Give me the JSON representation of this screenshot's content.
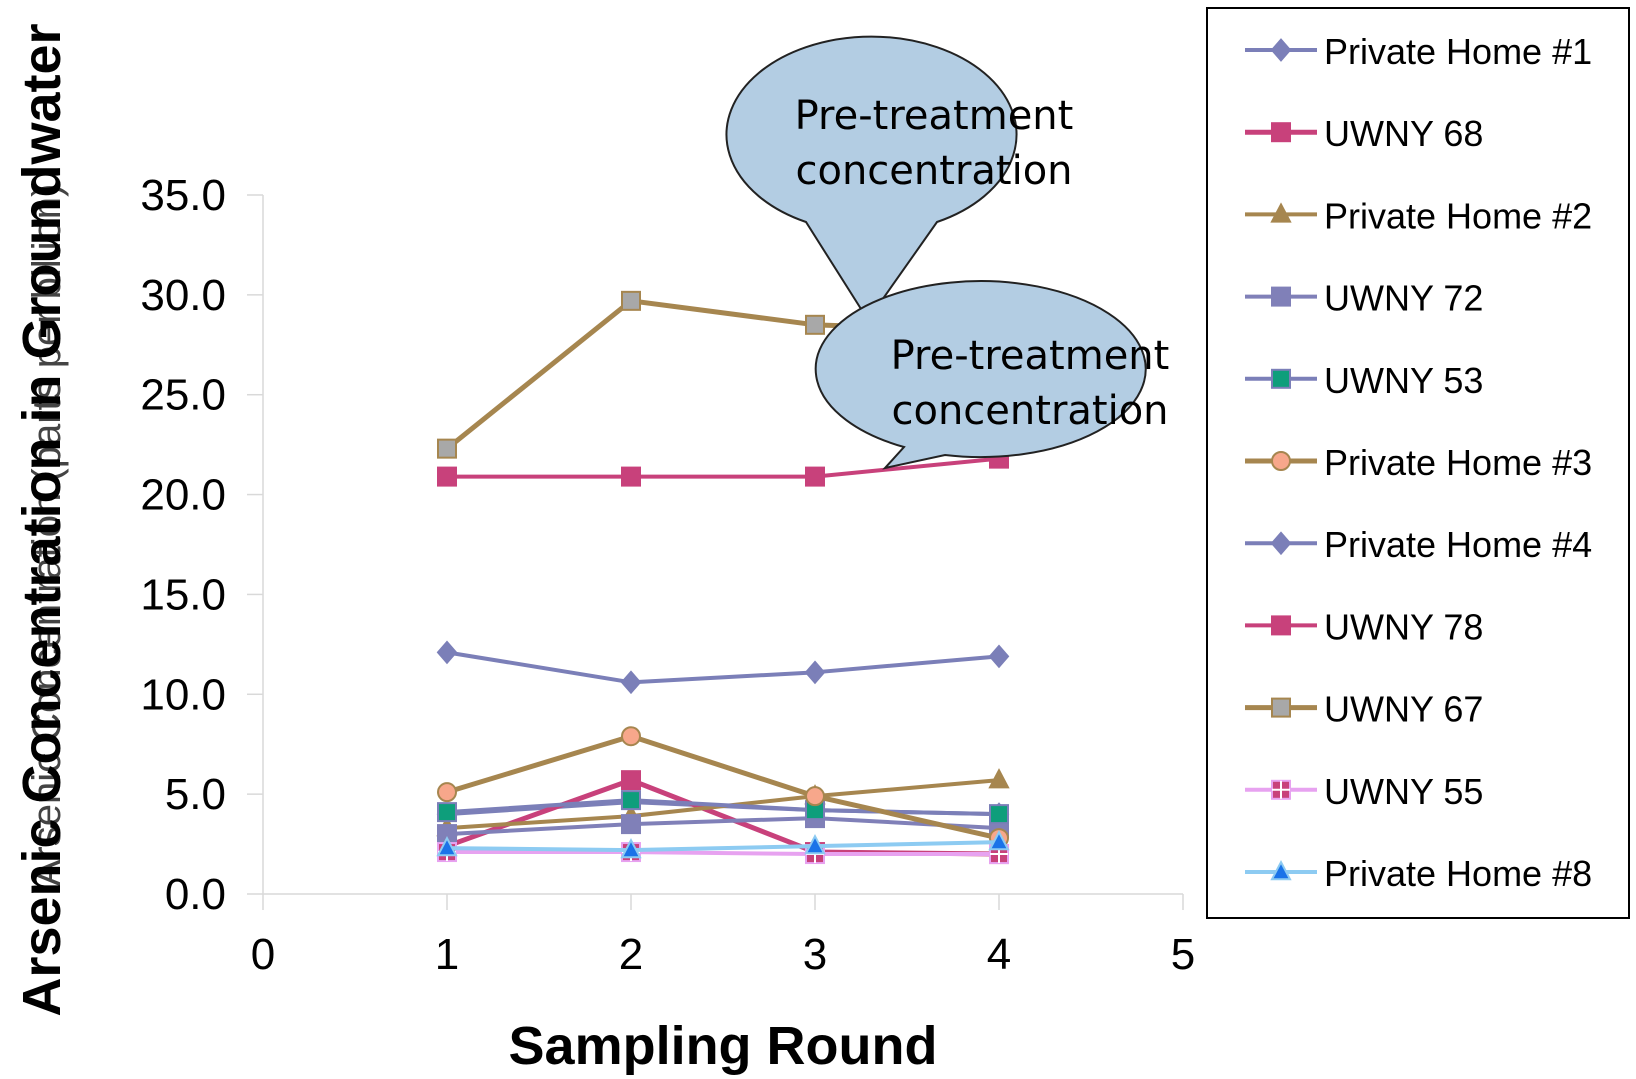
{
  "chart_data": {
    "type": "line",
    "xlabel": "Sampling Round",
    "ylabel_overlay": "Arsenic Concentration in Groundwater",
    "ylabel_underlay": "Arsenic Concentration (parts per billion)",
    "xlim": [
      0,
      5
    ],
    "ylim": [
      0,
      35
    ],
    "x_ticks": [
      "0",
      "1",
      "2",
      "3",
      "4",
      "5"
    ],
    "y_ticks": [
      "0.0",
      "5.0",
      "10.0",
      "15.0",
      "20.0",
      "25.0",
      "30.0",
      "35.0"
    ],
    "grid": false,
    "legend_position": "right",
    "x": [
      1,
      2,
      3,
      4
    ],
    "series": [
      {
        "name": "Private Home #1",
        "values": [
          4.0,
          4.6,
          4.2,
          4.0
        ],
        "color": "#7b7fb8",
        "marker": "diamond",
        "marker_fill": "#7b7fb8",
        "width": 4
      },
      {
        "name": "UWNY 68",
        "values": [
          2.4,
          5.7,
          2.1,
          2.0
        ],
        "color": "#c8417b",
        "marker": "square",
        "marker_fill": "#c8417b",
        "width": 5
      },
      {
        "name": "Private Home #2",
        "values": [
          3.3,
          3.9,
          4.9,
          5.7
        ],
        "color": "#a6864f",
        "marker": "triangle",
        "marker_fill": "#a6864f",
        "width": 4
      },
      {
        "name": "UWNY 72",
        "values": [
          3.0,
          3.5,
          3.8,
          3.3
        ],
        "color": "#8080b8",
        "marker": "square",
        "marker_fill": "#8080b8",
        "width": 4
      },
      {
        "name": "UWNY 53",
        "values": [
          4.1,
          4.7,
          4.2,
          4.0
        ],
        "color": "#7b7fb8",
        "marker": "square",
        "marker_fill": "#0e9e7b",
        "width": 4
      },
      {
        "name": "Private Home #3",
        "values": [
          5.1,
          7.9,
          4.9,
          2.8
        ],
        "color": "#a6864f",
        "marker": "circle",
        "marker_fill": "#f7a78b",
        "width": 5
      },
      {
        "name": "Private Home #4",
        "values": [
          12.1,
          10.6,
          11.1,
          11.9
        ],
        "color": "#7b7fb8",
        "marker": "diamond",
        "marker_fill": "#7b7fb8",
        "width": 4
      },
      {
        "name": "UWNY 78",
        "values": [
          20.9,
          20.9,
          20.9,
          21.8
        ],
        "color": "#c8417b",
        "marker": "square",
        "marker_fill": "#c8417b",
        "width": 4
      },
      {
        "name": "UWNY 67",
        "values": [
          22.3,
          29.7,
          28.5,
          28.2
        ],
        "color": "#a6864f",
        "marker": "square",
        "marker_fill": "#a8a8a8",
        "width": 5
      },
      {
        "name": "UWNY 55",
        "values": [
          2.1,
          2.1,
          2.0,
          2.0
        ],
        "color": "#e7a2f0",
        "marker": "crosssquare",
        "marker_fill": "#c8417b",
        "width": 4
      },
      {
        "name": "Private Home #8",
        "values": [
          2.3,
          2.2,
          2.4,
          2.6
        ],
        "color": "#8dcbf2",
        "marker": "triangle",
        "marker_fill": "#1a73e8",
        "width": 4
      }
    ],
    "annotations": [
      {
        "text_line1": "Pre-treatment",
        "text_line2": "concentration",
        "points_to_series": "UWNY 67"
      },
      {
        "text_line1": "Pre-treatment",
        "text_line2": "concentration",
        "points_to_series": "UWNY 78"
      }
    ]
  }
}
